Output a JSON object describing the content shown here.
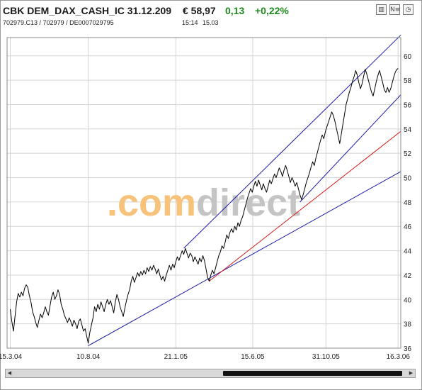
{
  "header": {
    "name": "CBK DEM_DAX_CASH_IC 31.12.209",
    "price": "€ 58,97",
    "change": "0,13",
    "change_pct": "+0,22%"
  },
  "subheader": {
    "ids": "702979.C13  /  702979  /  DE0007029795",
    "time1": "15:14",
    "time2": "15.03"
  },
  "toolbar": {
    "icons": [
      {
        "name": "bar-chart-icon",
        "glyph": "▥"
      },
      {
        "name": "news-icon",
        "glyph": "N≡"
      },
      {
        "name": "history-icon",
        "glyph": "◷"
      }
    ]
  },
  "watermark": {
    "part1": ".com",
    "part2": "direct"
  },
  "colors": {
    "price_line": "#000000",
    "channel": "#1c1ca8",
    "trend_red": "#d21a1a",
    "grid": "#d4d4d4",
    "watermark_orange": "#f7c27a",
    "watermark_gray": "#c4c4c4"
  },
  "chart_data": {
    "type": "line",
    "x_ticks": [
      {
        "label": "15.3.04",
        "x": 0
      },
      {
        "label": "10.8.04",
        "x": 147
      },
      {
        "label": "21.1.05",
        "x": 312
      },
      {
        "label": "15.6.05",
        "x": 457
      },
      {
        "label": "31.10.05",
        "x": 595
      },
      {
        "label": "16.3.06",
        "x": 731
      }
    ],
    "y_ticks": [
      36,
      38,
      40,
      42,
      44,
      46,
      48,
      50,
      52,
      54,
      56,
      58,
      60
    ],
    "ylim": [
      36,
      61.5
    ],
    "xlim": [
      -6,
      736
    ],
    "grid": true,
    "price_series": [
      [
        0,
        39.2
      ],
      [
        3,
        38.2
      ],
      [
        6,
        37.4
      ],
      [
        9,
        38.6
      ],
      [
        12,
        39.8
      ],
      [
        15,
        40.5
      ],
      [
        18,
        40.2
      ],
      [
        21,
        40.6
      ],
      [
        24,
        40.3
      ],
      [
        27,
        40.9
      ],
      [
        30,
        41.2
      ],
      [
        33,
        41.0
      ],
      [
        36,
        40.3
      ],
      [
        39,
        39.8
      ],
      [
        42,
        39.0
      ],
      [
        45,
        38.6
      ],
      [
        48,
        38.1
      ],
      [
        51,
        37.7
      ],
      [
        54,
        38.3
      ],
      [
        57,
        38.8
      ],
      [
        60,
        38.5
      ],
      [
        63,
        38.9
      ],
      [
        66,
        39.4
      ],
      [
        69,
        39.0
      ],
      [
        72,
        38.7
      ],
      [
        75,
        39.5
      ],
      [
        78,
        40.2
      ],
      [
        81,
        40.6
      ],
      [
        84,
        40.0
      ],
      [
        87,
        40.3
      ],
      [
        90,
        40.8
      ],
      [
        93,
        40.4
      ],
      [
        96,
        39.6
      ],
      [
        99,
        39.2
      ],
      [
        102,
        38.7
      ],
      [
        105,
        38.4
      ],
      [
        108,
        38.1
      ],
      [
        111,
        38.5
      ],
      [
        114,
        38.2
      ],
      [
        117,
        37.8
      ],
      [
        120,
        38.3
      ],
      [
        123,
        38.0
      ],
      [
        126,
        37.6
      ],
      [
        129,
        38.2
      ],
      [
        132,
        38.4
      ],
      [
        135,
        37.9
      ],
      [
        138,
        37.4
      ],
      [
        141,
        37.6
      ],
      [
        144,
        37.0
      ],
      [
        147,
        36.4
      ],
      [
        150,
        37.3
      ],
      [
        153,
        37.9
      ],
      [
        156,
        38.5
      ],
      [
        159,
        39.4
      ],
      [
        162,
        39.0
      ],
      [
        165,
        39.6
      ],
      [
        168,
        39.2
      ],
      [
        171,
        39.8
      ],
      [
        174,
        39.4
      ],
      [
        177,
        39.0
      ],
      [
        180,
        39.6
      ],
      [
        183,
        40.0
      ],
      [
        186,
        39.6
      ],
      [
        189,
        39.9
      ],
      [
        192,
        39.4
      ],
      [
        195,
        38.9
      ],
      [
        198,
        39.8
      ],
      [
        201,
        40.4
      ],
      [
        204,
        40.0
      ],
      [
        207,
        39.4
      ],
      [
        210,
        39.0
      ],
      [
        213,
        38.6
      ],
      [
        216,
        39.3
      ],
      [
        219,
        39.9
      ],
      [
        222,
        40.4
      ],
      [
        225,
        40.8
      ],
      [
        228,
        41.5
      ],
      [
        231,
        41.9
      ],
      [
        234,
        41.4
      ],
      [
        237,
        41.8
      ],
      [
        240,
        42.2
      ],
      [
        243,
        41.9
      ],
      [
        246,
        42.3
      ],
      [
        249,
        42.0
      ],
      [
        252,
        42.4
      ],
      [
        255,
        42.1
      ],
      [
        258,
        42.6
      ],
      [
        261,
        42.3
      ],
      [
        264,
        42.7
      ],
      [
        267,
        42.4
      ],
      [
        270,
        42.8
      ],
      [
        273,
        42.5
      ],
      [
        276,
        42.1
      ],
      [
        279,
        42.5
      ],
      [
        282,
        42.0
      ],
      [
        285,
        41.6
      ],
      [
        288,
        41.9
      ],
      [
        291,
        41.5
      ],
      [
        294,
        42.0
      ],
      [
        297,
        42.4
      ],
      [
        300,
        42.8
      ],
      [
        303,
        42.4
      ],
      [
        306,
        42.9
      ],
      [
        309,
        42.6
      ],
      [
        312,
        43.1
      ],
      [
        315,
        43.5
      ],
      [
        318,
        43.2
      ],
      [
        321,
        43.6
      ],
      [
        324,
        44.0
      ],
      [
        327,
        43.7
      ],
      [
        330,
        44.2
      ],
      [
        333,
        43.8
      ],
      [
        336,
        43.4
      ],
      [
        339,
        43.8
      ],
      [
        342,
        43.6
      ],
      [
        345,
        43.1
      ],
      [
        348,
        43.5
      ],
      [
        351,
        43.2
      ],
      [
        354,
        42.9
      ],
      [
        357,
        43.4
      ],
      [
        360,
        43.1
      ],
      [
        363,
        43.6
      ],
      [
        366,
        43.2
      ],
      [
        369,
        42.5
      ],
      [
        372,
        41.8
      ],
      [
        375,
        41.5
      ],
      [
        378,
        42.0
      ],
      [
        381,
        42.4
      ],
      [
        384,
        42.1
      ],
      [
        387,
        42.6
      ],
      [
        390,
        43.1
      ],
      [
        393,
        43.6
      ],
      [
        396,
        43.9
      ],
      [
        399,
        44.4
      ],
      [
        402,
        44.2
      ],
      [
        405,
        44.7
      ],
      [
        408,
        45.3
      ],
      [
        411,
        45.0
      ],
      [
        414,
        45.5
      ],
      [
        417,
        45.8
      ],
      [
        420,
        45.5
      ],
      [
        423,
        46.0
      ],
      [
        426,
        45.7
      ],
      [
        429,
        46.3
      ],
      [
        432,
        46.0
      ],
      [
        435,
        46.5
      ],
      [
        438,
        46.8
      ],
      [
        441,
        47.3
      ],
      [
        444,
        47.8
      ],
      [
        447,
        48.3
      ],
      [
        450,
        48.7
      ],
      [
        453,
        49.1
      ],
      [
        456,
        48.8
      ],
      [
        459,
        49.3
      ],
      [
        462,
        49.7
      ],
      [
        465,
        49.3
      ],
      [
        468,
        49.8
      ],
      [
        471,
        49.4
      ],
      [
        474,
        49.0
      ],
      [
        477,
        49.5
      ],
      [
        480,
        49.1
      ],
      [
        483,
        48.8
      ],
      [
        486,
        49.3
      ],
      [
        489,
        49.8
      ],
      [
        492,
        49.5
      ],
      [
        495,
        49.9
      ],
      [
        498,
        50.3
      ],
      [
        501,
        50.0
      ],
      [
        504,
        50.4
      ],
      [
        507,
        50.8
      ],
      [
        510,
        50.5
      ],
      [
        513,
        50.1
      ],
      [
        516,
        50.6
      ],
      [
        519,
        51.0
      ],
      [
        522,
        50.6
      ],
      [
        525,
        50.1
      ],
      [
        528,
        49.6
      ],
      [
        531,
        50.0
      ],
      [
        534,
        49.7
      ],
      [
        537,
        49.3
      ],
      [
        540,
        49.6
      ],
      [
        543,
        49.1
      ],
      [
        546,
        48.6
      ],
      [
        549,
        48.2
      ],
      [
        552,
        48.6
      ],
      [
        555,
        49.1
      ],
      [
        558,
        49.6
      ],
      [
        561,
        50.0
      ],
      [
        564,
        50.4
      ],
      [
        567,
        50.9
      ],
      [
        570,
        51.3
      ],
      [
        573,
        51.0
      ],
      [
        576,
        51.6
      ],
      [
        579,
        52.1
      ],
      [
        582,
        52.6
      ],
      [
        585,
        53.1
      ],
      [
        588,
        53.5
      ],
      [
        591,
        53.2
      ],
      [
        594,
        53.8
      ],
      [
        597,
        54.2
      ],
      [
        600,
        54.6
      ],
      [
        603,
        55.0
      ],
      [
        606,
        55.4
      ],
      [
        609,
        55.1
      ],
      [
        612,
        54.6
      ],
      [
        615,
        54.0
      ],
      [
        618,
        53.4
      ],
      [
        621,
        52.8
      ],
      [
        624,
        53.6
      ],
      [
        627,
        54.4
      ],
      [
        630,
        55.2
      ],
      [
        633,
        56.0
      ],
      [
        636,
        56.5
      ],
      [
        639,
        57.0
      ],
      [
        642,
        57.4
      ],
      [
        645,
        57.9
      ],
      [
        648,
        58.3
      ],
      [
        651,
        58.8
      ],
      [
        654,
        58.4
      ],
      [
        657,
        57.8
      ],
      [
        660,
        57.3
      ],
      [
        663,
        57.7
      ],
      [
        666,
        58.3
      ],
      [
        669,
        58.9
      ],
      [
        672,
        58.5
      ],
      [
        675,
        58.0
      ],
      [
        678,
        57.5
      ],
      [
        681,
        57.0
      ],
      [
        684,
        56.7
      ],
      [
        687,
        57.3
      ],
      [
        690,
        57.9
      ],
      [
        693,
        58.4
      ],
      [
        696,
        58.8
      ],
      [
        699,
        58.3
      ],
      [
        702,
        57.8
      ],
      [
        705,
        57.2
      ],
      [
        708,
        57.0
      ],
      [
        711,
        57.4
      ],
      [
        714,
        57.0
      ],
      [
        717,
        57.3
      ],
      [
        720,
        57.8
      ],
      [
        723,
        58.3
      ],
      [
        726,
        58.7
      ],
      [
        729,
        58.9
      ],
      [
        731,
        58.97
      ]
    ],
    "trend_lines": [
      {
        "name": "channel-upper",
        "color": "channel",
        "from": [
          327,
          44.2
        ],
        "to": [
          736,
          61.7
        ]
      },
      {
        "name": "channel-lower",
        "color": "channel",
        "from": [
          546,
          48.0
        ],
        "to": [
          736,
          56.8
        ]
      },
      {
        "name": "support-long",
        "color": "channel",
        "from": [
          147,
          36.2
        ],
        "to": [
          736,
          50.5
        ]
      },
      {
        "name": "support-red",
        "color": "trend_red",
        "from": [
          375,
          41.5
        ],
        "to": [
          736,
          53.8
        ]
      }
    ]
  },
  "scrollbar": {
    "thumb_start": 0.53,
    "thumb_end": 0.985
  }
}
